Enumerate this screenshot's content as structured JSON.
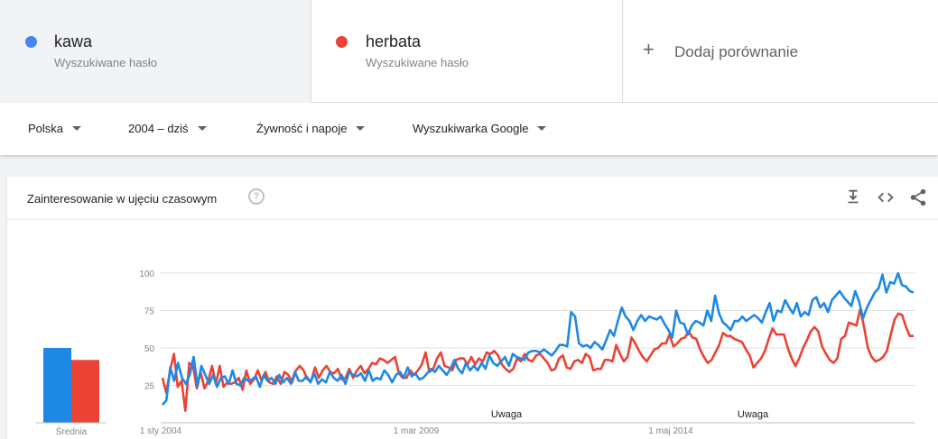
{
  "terms": [
    {
      "name": "kawa",
      "subtitle": "Wyszukiwane hasło",
      "color": "#4285f4",
      "active": true
    },
    {
      "name": "herbata",
      "subtitle": "Wyszukiwane hasło",
      "color": "#ea4335",
      "active": false
    }
  ],
  "add_comparison": {
    "icon": "plus-icon",
    "label": "Dodaj porównanie"
  },
  "filters": [
    {
      "label": "Polska",
      "icon": "dropdown-caret-icon"
    },
    {
      "label": "2004 – dziś",
      "icon": "dropdown-caret-icon"
    },
    {
      "label": "Żywność i napoje",
      "icon": "dropdown-caret-icon"
    },
    {
      "label": "Wyszukiwarka Google",
      "icon": "dropdown-caret-icon"
    }
  ],
  "card": {
    "title": "Zainteresowanie w ujęciu czasowym",
    "help_icon": "?",
    "tools": [
      "download-icon",
      "embed-code-icon",
      "share-icon"
    ]
  },
  "chart_data": {
    "type": "line",
    "ylim": [
      0,
      100
    ],
    "yticks": [
      25,
      50,
      75,
      100
    ],
    "xlabels": [
      "1 sty 2004",
      "1 mar 2009",
      "1 maj 2014"
    ],
    "annotations": [
      "Uwaga",
      "Uwaga"
    ],
    "average_label": "Średnia",
    "averages": [
      {
        "name": "kawa",
        "value": 50
      },
      {
        "name": "herbata",
        "value": 42
      }
    ],
    "series": [
      {
        "name": "kawa",
        "color": "#1e88e5",
        "values": [
          12,
          15,
          37,
          28,
          40,
          30,
          26,
          32,
          44,
          25,
          38,
          32,
          26,
          32,
          24,
          30,
          31,
          26,
          35,
          26,
          25,
          30,
          28,
          29,
          31,
          24,
          32,
          28,
          30,
          26,
          32,
          27,
          30,
          26,
          34,
          28,
          28,
          31,
          27,
          33,
          26,
          29,
          27,
          34,
          30,
          28,
          32,
          26,
          34,
          32,
          31,
          33,
          28,
          35,
          28,
          30,
          29,
          35,
          32,
          27,
          32,
          34,
          30,
          37,
          31,
          33,
          29,
          30,
          33,
          36,
          34,
          38,
          35,
          32,
          36,
          42,
          36,
          33,
          40,
          35,
          38,
          35,
          40,
          36,
          45,
          40,
          38,
          41,
          44,
          38,
          46,
          44,
          43,
          42,
          47,
          48,
          48,
          47,
          49,
          47,
          45,
          48,
          52,
          52,
          51,
          74,
          71,
          53,
          51,
          52,
          50,
          54,
          52,
          49,
          55,
          62,
          58,
          68,
          77,
          71,
          68,
          62,
          68,
          72,
          68,
          71,
          70,
          69,
          71,
          66,
          62,
          57,
          75,
          67,
          66,
          59,
          65,
          68,
          67,
          65,
          75,
          68,
          85,
          73,
          67,
          65,
          62,
          68,
          68,
          71,
          68,
          70,
          72,
          70,
          67,
          74,
          80,
          68,
          75,
          74,
          82,
          77,
          73,
          80,
          71,
          74,
          72,
          82,
          84,
          77,
          80,
          74,
          82,
          85,
          88,
          84,
          81,
          78,
          88,
          81,
          70,
          77,
          82,
          87,
          90,
          99,
          87,
          94,
          93,
          100,
          92,
          91,
          88,
          87
        ]
      },
      {
        "name": "herbata",
        "color": "#ea4335",
        "values": [
          30,
          20,
          35,
          46,
          24,
          28,
          8,
          40,
          38,
          23,
          34,
          23,
          28,
          38,
          26,
          38,
          24,
          27,
          26,
          27,
          30,
          22,
          35,
          26,
          29,
          35,
          28,
          34,
          27,
          26,
          31,
          26,
          34,
          32,
          27,
          35,
          38,
          35,
          29,
          28,
          37,
          30,
          35,
          38,
          34,
          33,
          36,
          29,
          30,
          36,
          30,
          35,
          38,
          33,
          36,
          40,
          39,
          43,
          42,
          40,
          42,
          44,
          33,
          30,
          30,
          35,
          32,
          35,
          39,
          47,
          34,
          36,
          43,
          47,
          38,
          37,
          35,
          42,
          43,
          43,
          39,
          44,
          39,
          43,
          41,
          47,
          46,
          48,
          45,
          39,
          36,
          34,
          36,
          43,
          41,
          46,
          42,
          41,
          45,
          46,
          43,
          40,
          35,
          36,
          43,
          45,
          37,
          36,
          41,
          42,
          40,
          46,
          44,
          35,
          36,
          36,
          42,
          42,
          41,
          52,
          46,
          41,
          44,
          57,
          53,
          48,
          44,
          41,
          45,
          49,
          50,
          53,
          53,
          59,
          51,
          53,
          56,
          57,
          61,
          57,
          56,
          49,
          44,
          40,
          42,
          47,
          52,
          60,
          58,
          58,
          56,
          55,
          54,
          49,
          45,
          37,
          40,
          43,
          48,
          56,
          63,
          59,
          59,
          59,
          50,
          43,
          38,
          43,
          50,
          55,
          61,
          64,
          61,
          51,
          46,
          42,
          40,
          43,
          56,
          58,
          67,
          66,
          65,
          76,
          64,
          50,
          44,
          41,
          42,
          44,
          48,
          59,
          69,
          73,
          72,
          64,
          58,
          58
        ]
      }
    ]
  }
}
